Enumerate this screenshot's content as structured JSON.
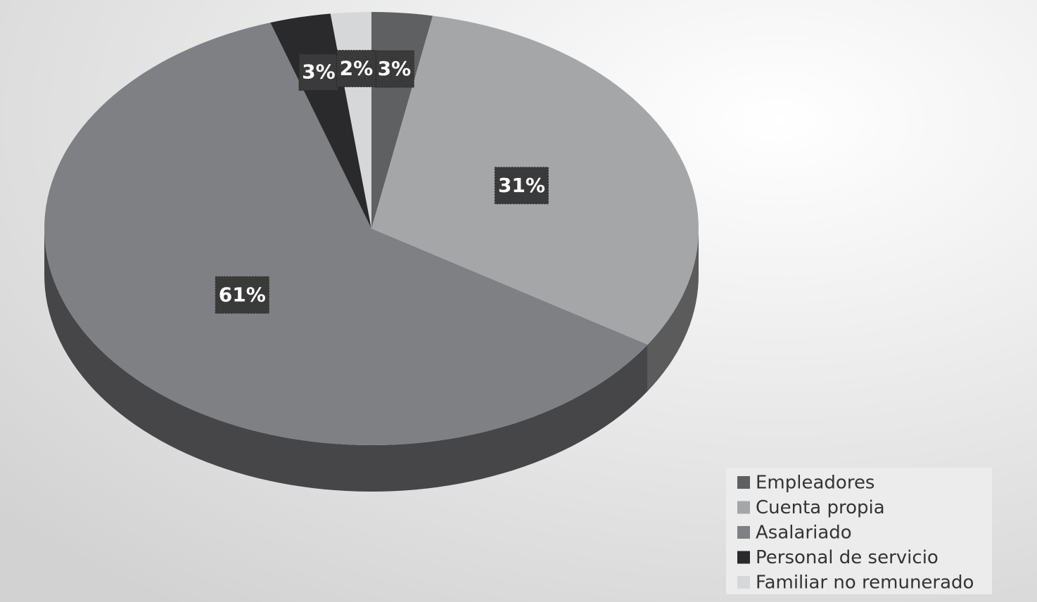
{
  "chart_data": {
    "type": "pie3d",
    "categories": [
      "Empleadores",
      "Cuenta propia",
      "Asalariado",
      "Personal de servicio",
      "Familiar no remunerado"
    ],
    "values": [
      3,
      31,
      61,
      3,
      2
    ],
    "value_labels": [
      "3%",
      "31%",
      "61%",
      "3%",
      "2%"
    ],
    "colors": [
      "#5f6062",
      "#a5a6a8",
      "#7f8083",
      "#2a2a2c",
      "#d6d7d8"
    ],
    "legend": "bottom-right"
  }
}
